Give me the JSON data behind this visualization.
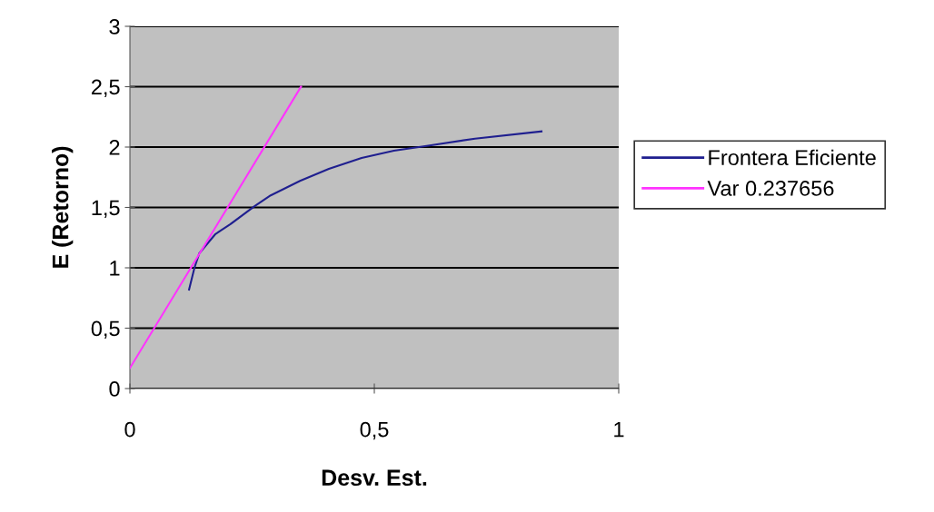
{
  "chart_data": {
    "type": "line",
    "xlabel": "Desv. Est.",
    "ylabel": "E (Retorno)",
    "xlim": [
      0,
      1
    ],
    "ylim": [
      0,
      3
    ],
    "xticks": [
      0,
      {
        "value": 0.5,
        "label": "0,5"
      },
      1
    ],
    "yticks": [
      0,
      {
        "value": 0.5,
        "label": "0,5"
      },
      1,
      {
        "value": 1.5,
        "label": "1,5"
      },
      2,
      {
        "value": 2.5,
        "label": "2,5"
      },
      3
    ],
    "grid": "y",
    "legend": "right",
    "marker": "none",
    "line_style": "solid",
    "series": [
      {
        "name": "Frontera Eficiente",
        "color": "#1f1f8f",
        "x": [
          0.121,
          0.132,
          0.142,
          0.175,
          0.205,
          0.255,
          0.288,
          0.348,
          0.407,
          0.474,
          0.54,
          0.607,
          0.706,
          0.842
        ],
        "values": [
          0.82,
          1.0,
          1.12,
          1.28,
          1.36,
          1.51,
          1.6,
          1.72,
          1.82,
          1.91,
          1.97,
          2.01,
          2.07,
          2.13
        ]
      },
      {
        "name": "Var 0.237656",
        "color": "#ff33ff",
        "x": [
          0,
          0.35
        ],
        "values": [
          0.17,
          2.5
        ]
      }
    ]
  }
}
